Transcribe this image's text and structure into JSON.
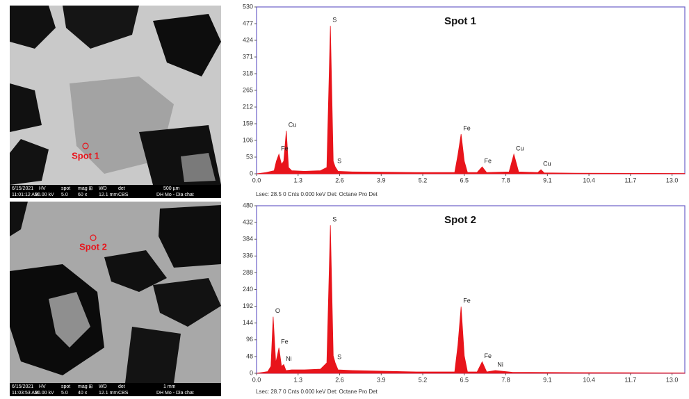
{
  "images": [
    {
      "label": "Spot 1",
      "bar": [
        [
          "6/15/2021",
          "HV",
          "spot",
          "mag ⊞",
          "WD",
          "det",
          "500 µm"
        ],
        [
          "11:01:12 AM",
          "20.00 kV",
          "5.0",
          "60 x",
          "12.1 mm",
          "CBS",
          "DH Mo - Dia chat"
        ]
      ]
    },
    {
      "label": "Spot 2",
      "bar": [
        [
          "6/15/2021",
          "HV",
          "spot",
          "mag ⊞",
          "WD",
          "det",
          "1 mm"
        ],
        [
          "11:03:53 AM",
          "20.00 kV",
          "5.0",
          "40 x",
          "12.1 mm",
          "CBS",
          "DH Mo - Dia chat"
        ]
      ]
    }
  ],
  "chart_data": [
    {
      "type": "area",
      "title": "Spot 1",
      "footer": "Lsec: 28.5 0 Cnts  0.000 keV Det: Octane Pro Det",
      "x": [
        0,
        0.3,
        0.55,
        0.62,
        0.7,
        0.78,
        0.85,
        0.93,
        1.0,
        1.1,
        1.5,
        2.0,
        2.2,
        2.31,
        2.4,
        2.46,
        2.55,
        3.0,
        4.0,
        5.0,
        6.2,
        6.3,
        6.4,
        6.5,
        6.6,
        6.9,
        7.06,
        7.2,
        7.9,
        8.05,
        8.2,
        8.8,
        8.9,
        9.0,
        10,
        13.4
      ],
      "series": [
        {
          "color": "#e8141b",
          "values": [
            0,
            4,
            10,
            40,
            62,
            30,
            40,
            137,
            20,
            10,
            8,
            10,
            20,
            470,
            40,
            22,
            8,
            6,
            5,
            4,
            4,
            60,
            126,
            40,
            4,
            4,
            22,
            4,
            6,
            62,
            6,
            4,
            13,
            3,
            2,
            1
          ]
        }
      ],
      "annotations": [
        {
          "text": "Fe",
          "x": 0.7,
          "y": 62
        },
        {
          "text": "Cu",
          "x": 0.93,
          "y": 137
        },
        {
          "text": "S",
          "x": 2.31,
          "y": 470
        },
        {
          "text": "S",
          "x": 2.46,
          "y": 22
        },
        {
          "text": "Fe",
          "x": 6.4,
          "y": 126
        },
        {
          "text": "Fe",
          "x": 7.06,
          "y": 22
        },
        {
          "text": "Cu",
          "x": 8.05,
          "y": 62
        },
        {
          "text": "Cu",
          "x": 8.9,
          "y": 13
        }
      ],
      "xlim": [
        0,
        13.4
      ],
      "xticks": [
        {
          "value": 0,
          "label": "0.0"
        },
        1.3,
        2.6,
        3.9,
        5.2,
        6.5,
        7.8,
        9.1,
        10.4,
        11.7,
        {
          "value": 13,
          "label": "13.0"
        }
      ],
      "ylim": [
        0,
        530
      ],
      "yticks": [
        0,
        53,
        106,
        159,
        212,
        265,
        318,
        371,
        424,
        477,
        530
      ]
    },
    {
      "type": "area",
      "title": "Spot 2",
      "footer": "Lsec: 28.7 0 Cnts  0.000 keV Det: Octane Pro Det",
      "x": [
        0,
        0.35,
        0.45,
        0.52,
        0.6,
        0.65,
        0.7,
        0.78,
        0.85,
        0.92,
        1.1,
        1.5,
        2.0,
        2.2,
        2.31,
        2.4,
        2.46,
        2.55,
        3.0,
        4.0,
        5.0,
        6.2,
        6.3,
        6.4,
        6.5,
        6.6,
        6.9,
        7.06,
        7.2,
        7.47,
        8,
        10,
        13.4
      ],
      "series": [
        {
          "color": "#e8141b",
          "values": [
            0,
            5,
            20,
            162,
            30,
            50,
            73,
            20,
            25,
            8,
            10,
            10,
            12,
            30,
            424,
            50,
            30,
            10,
            8,
            6,
            4,
            4,
            80,
            191,
            50,
            4,
            4,
            33,
            4,
            8,
            3,
            2,
            1
          ]
        }
      ],
      "annotations": [
        {
          "text": "O",
          "x": 0.52,
          "y": 162
        },
        {
          "text": "Fe",
          "x": 0.7,
          "y": 73
        },
        {
          "text": "Ni",
          "x": 0.85,
          "y": 25
        },
        {
          "text": "S",
          "x": 2.31,
          "y": 424
        },
        {
          "text": "S",
          "x": 2.46,
          "y": 30
        },
        {
          "text": "Fe",
          "x": 6.4,
          "y": 191
        },
        {
          "text": "Fe",
          "x": 7.06,
          "y": 33
        },
        {
          "text": "Ni",
          "x": 7.47,
          "y": 8
        }
      ],
      "xlim": [
        0,
        13.4
      ],
      "xticks": [
        {
          "value": 0,
          "label": "0.0"
        },
        1.3,
        2.6,
        3.9,
        5.2,
        6.5,
        7.8,
        9.1,
        10.4,
        11.7,
        {
          "value": 13,
          "label": "13.0"
        }
      ],
      "ylim": [
        0,
        480
      ],
      "yticks": [
        0,
        48,
        96,
        144,
        192,
        240,
        288,
        336,
        384,
        432,
        480
      ]
    }
  ]
}
